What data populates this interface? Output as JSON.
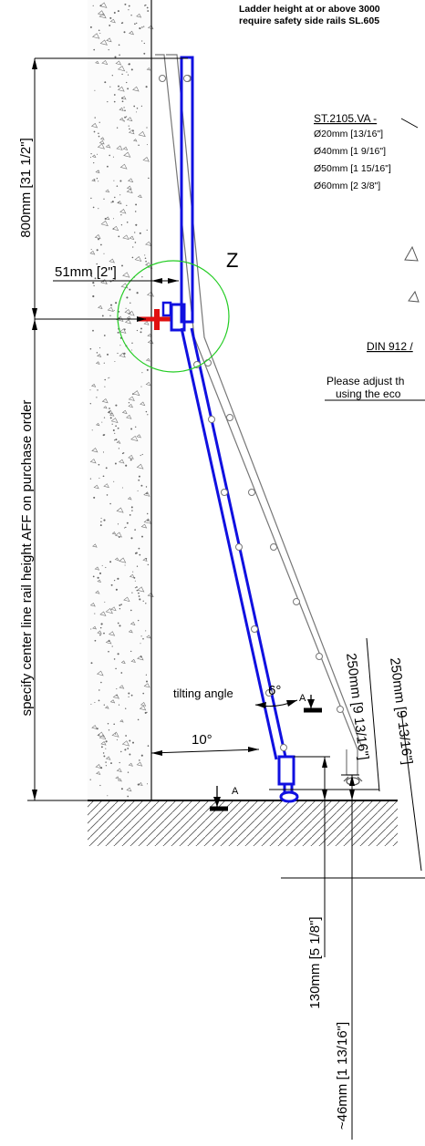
{
  "note": {
    "line1": "Ladder height at or above 3000",
    "line2": "require safety side rails SL.605"
  },
  "detail": {
    "label": "Z",
    "offset_label": "51mm [2\"]"
  },
  "parts": {
    "title": "ST.2105.VA -",
    "diameters": [
      "Ø20mm [13/16\"]",
      "Ø40mm [1 9/16\"]",
      "Ø50mm [1 15/16\"]",
      "Ø60mm [2 3/8\"]"
    ],
    "screw": "DIN 912 /",
    "adjust_line1": "Please adjust th",
    "adjust_line2": "using the eco"
  },
  "dimensions": {
    "top_height": "800mm [31 1/2\"]",
    "rail_height": "specify center line rail height AFF on purchase order",
    "rung_spacing_1": "250mm [9 13/16\"]",
    "rung_spacing_2": "250mm [9 13/16\"]",
    "foot_height": "130mm [5 1/8\"]",
    "foot_offset": "~46mm [1 13/16\"]"
  },
  "angles": {
    "tilting_label": "tilting angle",
    "tilt": "6°",
    "lean": "10°"
  },
  "section": {
    "left": "A",
    "right": "A"
  },
  "colors": {
    "ladder": "#1010e0",
    "grey_ladder": "#777777",
    "bracket": "#e01010",
    "detail_circle": "#22cc22"
  }
}
